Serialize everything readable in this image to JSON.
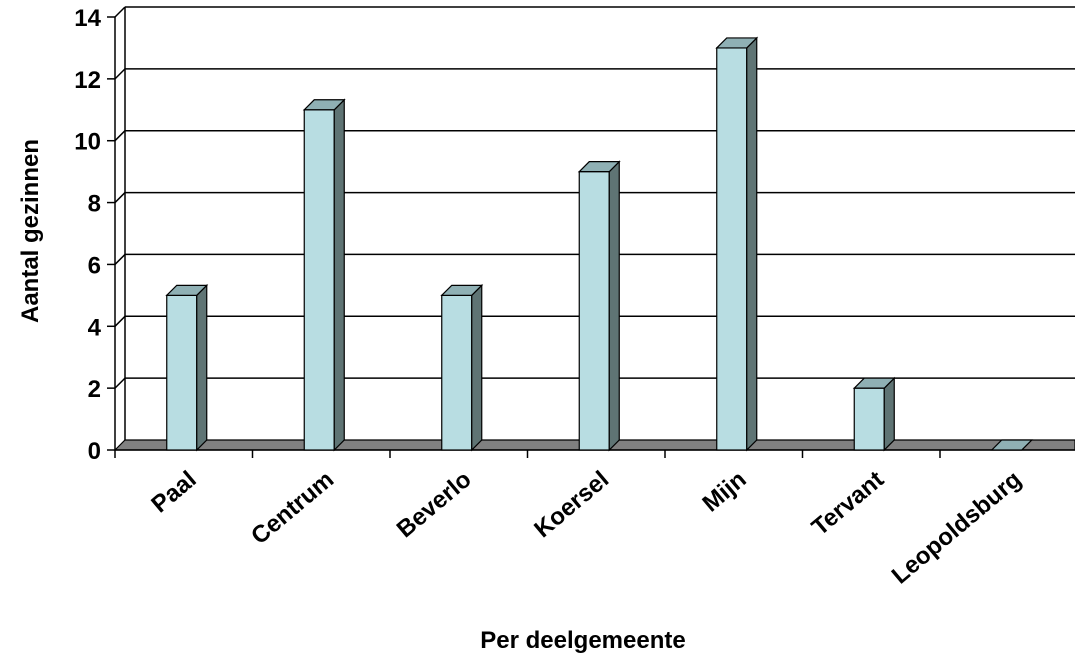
{
  "chart_data": {
    "type": "bar",
    "categories": [
      "Paal",
      "Centrum",
      "Beverlo",
      "Koersel",
      "Mijn",
      "Tervant",
      "Leopoldsburg"
    ],
    "values": [
      5,
      11,
      5,
      9,
      13,
      2,
      0
    ],
    "xlabel": "Per deelgemeente",
    "ylabel": "Aantal gezinnen",
    "ylim": [
      0,
      14
    ],
    "yticks": [
      "0",
      "2",
      "4",
      "6",
      "8",
      "10",
      "12",
      "14"
    ],
    "grid": true,
    "legend": "none",
    "bar_color": "#b8dde2",
    "bar_side_color": "#5f7474",
    "bar_top_color": "#8fb0b4"
  }
}
